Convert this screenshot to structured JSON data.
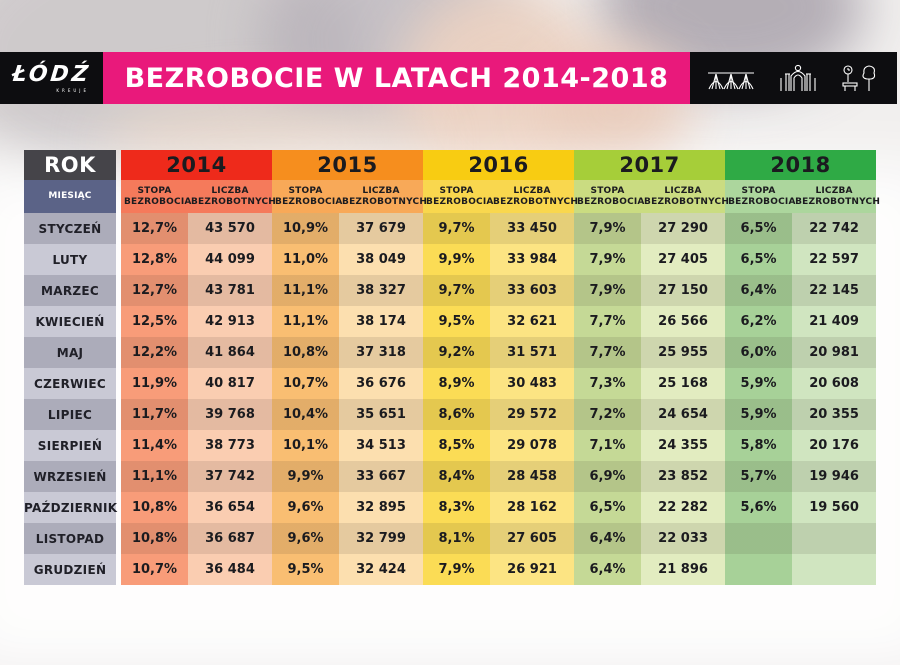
{
  "header": {
    "logo": {
      "city": "ŁÓDŹ",
      "tagline": "KREUJE"
    },
    "title": "BEZROBOCIE W LATACH 2014-2018",
    "banner_color": "#e9197b",
    "banner_text_color": "#ffffff",
    "icon_names": [
      "viaduct-icon",
      "gate-icon",
      "park-icon"
    ]
  },
  "table": {
    "rok_label": "ROK",
    "miesiac_label": "MIESIĄC",
    "stopa_label": "STOPA BEZROBOCIA",
    "liczba_label": "LICZBA BEZROBOTNYCH",
    "month_col_colors": {
      "odd": "#acacba",
      "even": "#c9c9d5"
    },
    "rok_bg": "#454449",
    "miesiac_bg": "#5b6387",
    "years": [
      {
        "label": "2014",
        "header_color": "#ee2a1b",
        "sub_color": "#f57a5b",
        "stopa_color": "#f89c79",
        "liczba_color": "#facdb1"
      },
      {
        "label": "2015",
        "header_color": "#f68e1e",
        "sub_color": "#f8a958",
        "stopa_color": "#f9be72",
        "liczba_color": "#fcdfaf"
      },
      {
        "label": "2016",
        "header_color": "#f8cc12",
        "sub_color": "#f9d74e",
        "stopa_color": "#fbdc55",
        "liczba_color": "#fce483"
      },
      {
        "label": "2017",
        "header_color": "#a6ce39",
        "sub_color": "#cadc81",
        "stopa_color": "#c5d996",
        "liczba_color": "#e2ecc0"
      },
      {
        "label": "2018",
        "header_color": "#2faa45",
        "sub_color": "#acd69d",
        "stopa_color": "#a7d198",
        "liczba_color": "#d0e5c0"
      }
    ],
    "rows": [
      {
        "month": "STYCZEŃ",
        "values": [
          [
            "12,7%",
            "43 570"
          ],
          [
            "10,9%",
            "37 679"
          ],
          [
            "9,7%",
            "33 450"
          ],
          [
            "7,9%",
            "27 290"
          ],
          [
            "6,5%",
            "22 742"
          ]
        ]
      },
      {
        "month": "LUTY",
        "values": [
          [
            "12,8%",
            "44 099"
          ],
          [
            "11,0%",
            "38 049"
          ],
          [
            "9,9%",
            "33 984"
          ],
          [
            "7,9%",
            "27 405"
          ],
          [
            "6,5%",
            "22 597"
          ]
        ]
      },
      {
        "month": "MARZEC",
        "values": [
          [
            "12,7%",
            "43 781"
          ],
          [
            "11,1%",
            "38 327"
          ],
          [
            "9,7%",
            "33 603"
          ],
          [
            "7,9%",
            "27 150"
          ],
          [
            "6,4%",
            "22 145"
          ]
        ]
      },
      {
        "month": "KWIECIEŃ",
        "values": [
          [
            "12,5%",
            "42 913"
          ],
          [
            "11,1%",
            "38 174"
          ],
          [
            "9,5%",
            "32 621"
          ],
          [
            "7,7%",
            "26 566"
          ],
          [
            "6,2%",
            "21 409"
          ]
        ]
      },
      {
        "month": "MAJ",
        "values": [
          [
            "12,2%",
            "41 864"
          ],
          [
            "10,8%",
            "37 318"
          ],
          [
            "9,2%",
            "31 571"
          ],
          [
            "7,7%",
            "25 955"
          ],
          [
            "6,0%",
            "20 981"
          ]
        ]
      },
      {
        "month": "CZERWIEC",
        "values": [
          [
            "11,9%",
            "40 817"
          ],
          [
            "10,7%",
            "36 676"
          ],
          [
            "8,9%",
            "30 483"
          ],
          [
            "7,3%",
            "25 168"
          ],
          [
            "5,9%",
            "20 608"
          ]
        ]
      },
      {
        "month": "LIPIEC",
        "values": [
          [
            "11,7%",
            "39 768"
          ],
          [
            "10,4%",
            "35 651"
          ],
          [
            "8,6%",
            "29 572"
          ],
          [
            "7,2%",
            "24 654"
          ],
          [
            "5,9%",
            "20 355"
          ]
        ]
      },
      {
        "month": "SIERPIEŃ",
        "values": [
          [
            "11,4%",
            "38 773"
          ],
          [
            "10,1%",
            "34 513"
          ],
          [
            "8,5%",
            "29 078"
          ],
          [
            "7,1%",
            "24 355"
          ],
          [
            "5,8%",
            "20 176"
          ]
        ]
      },
      {
        "month": "WRZESIEŃ",
        "values": [
          [
            "11,1%",
            "37 742"
          ],
          [
            "9,9%",
            "33 667"
          ],
          [
            "8,4%",
            "28 458"
          ],
          [
            "6,9%",
            "23 852"
          ],
          [
            "5,7%",
            "19 946"
          ]
        ]
      },
      {
        "month": "PAŹDZIERNIK",
        "values": [
          [
            "10,8%",
            "36 654"
          ],
          [
            "9,6%",
            "32 895"
          ],
          [
            "8,3%",
            "28 162"
          ],
          [
            "6,5%",
            "22 282"
          ],
          [
            "5,6%",
            "19 560"
          ]
        ]
      },
      {
        "month": "LISTOPAD",
        "values": [
          [
            "10,8%",
            "36 687"
          ],
          [
            "9,6%",
            "32 799"
          ],
          [
            "8,1%",
            "27 605"
          ],
          [
            "6,4%",
            "22 033"
          ],
          [
            "",
            ""
          ]
        ]
      },
      {
        "month": "GRUDZIEŃ",
        "values": [
          [
            "10,7%",
            "36 484"
          ],
          [
            "9,5%",
            "32 424"
          ],
          [
            "7,9%",
            "26 921"
          ],
          [
            "6,4%",
            "21 896"
          ],
          [
            "",
            ""
          ]
        ]
      }
    ]
  },
  "chart_data": {
    "type": "table",
    "title": "BEZROBOCIE W LATACH 2014-2018",
    "categories": [
      "STYCZEŃ",
      "LUTY",
      "MARZEC",
      "KWIECIEŃ",
      "MAJ",
      "CZERWIEC",
      "LIPIEC",
      "SIERPIEŃ",
      "WRZESIEŃ",
      "PAŹDZIERNIK",
      "LISTOPAD",
      "GRUDZIEŃ"
    ],
    "series": [
      {
        "name": "2014 STOPA BEZROBOCIA (%)",
        "values": [
          12.7,
          12.8,
          12.7,
          12.5,
          12.2,
          11.9,
          11.7,
          11.4,
          11.1,
          10.8,
          10.8,
          10.7
        ]
      },
      {
        "name": "2014 LICZBA BEZROBOTNYCH",
        "values": [
          43570,
          44099,
          43781,
          42913,
          41864,
          40817,
          39768,
          38773,
          37742,
          36654,
          36687,
          36484
        ]
      },
      {
        "name": "2015 STOPA BEZROBOCIA (%)",
        "values": [
          10.9,
          11.0,
          11.1,
          11.1,
          10.8,
          10.7,
          10.4,
          10.1,
          9.9,
          9.6,
          9.6,
          9.5
        ]
      },
      {
        "name": "2015 LICZBA BEZROBOTNYCH",
        "values": [
          37679,
          38049,
          38327,
          38174,
          37318,
          36676,
          35651,
          34513,
          33667,
          32895,
          32799,
          32424
        ]
      },
      {
        "name": "2016 STOPA BEZROBOCIA (%)",
        "values": [
          9.7,
          9.9,
          9.7,
          9.5,
          9.2,
          8.9,
          8.6,
          8.5,
          8.4,
          8.3,
          8.1,
          7.9
        ]
      },
      {
        "name": "2016 LICZBA BEZROBOTNYCH",
        "values": [
          33450,
          33984,
          33603,
          32621,
          31571,
          30483,
          29572,
          29078,
          28458,
          28162,
          27605,
          26921
        ]
      },
      {
        "name": "2017 STOPA BEZROBOCIA (%)",
        "values": [
          7.9,
          7.9,
          7.9,
          7.7,
          7.7,
          7.3,
          7.2,
          7.1,
          6.9,
          6.5,
          6.4,
          6.4
        ]
      },
      {
        "name": "2017 LICZBA BEZROBOTNYCH",
        "values": [
          27290,
          27405,
          27150,
          26566,
          25955,
          25168,
          24654,
          24355,
          23852,
          22282,
          22033,
          21896
        ]
      },
      {
        "name": "2018 STOPA BEZROBOCIA (%)",
        "values": [
          6.5,
          6.5,
          6.4,
          6.2,
          6.0,
          5.9,
          5.9,
          5.8,
          5.7,
          5.6,
          null,
          null
        ]
      },
      {
        "name": "2018 LICZBA BEZROBOTNYCH",
        "values": [
          22742,
          22597,
          22145,
          21409,
          20981,
          20608,
          20355,
          20176,
          19946,
          19560,
          null,
          null
        ]
      }
    ]
  }
}
